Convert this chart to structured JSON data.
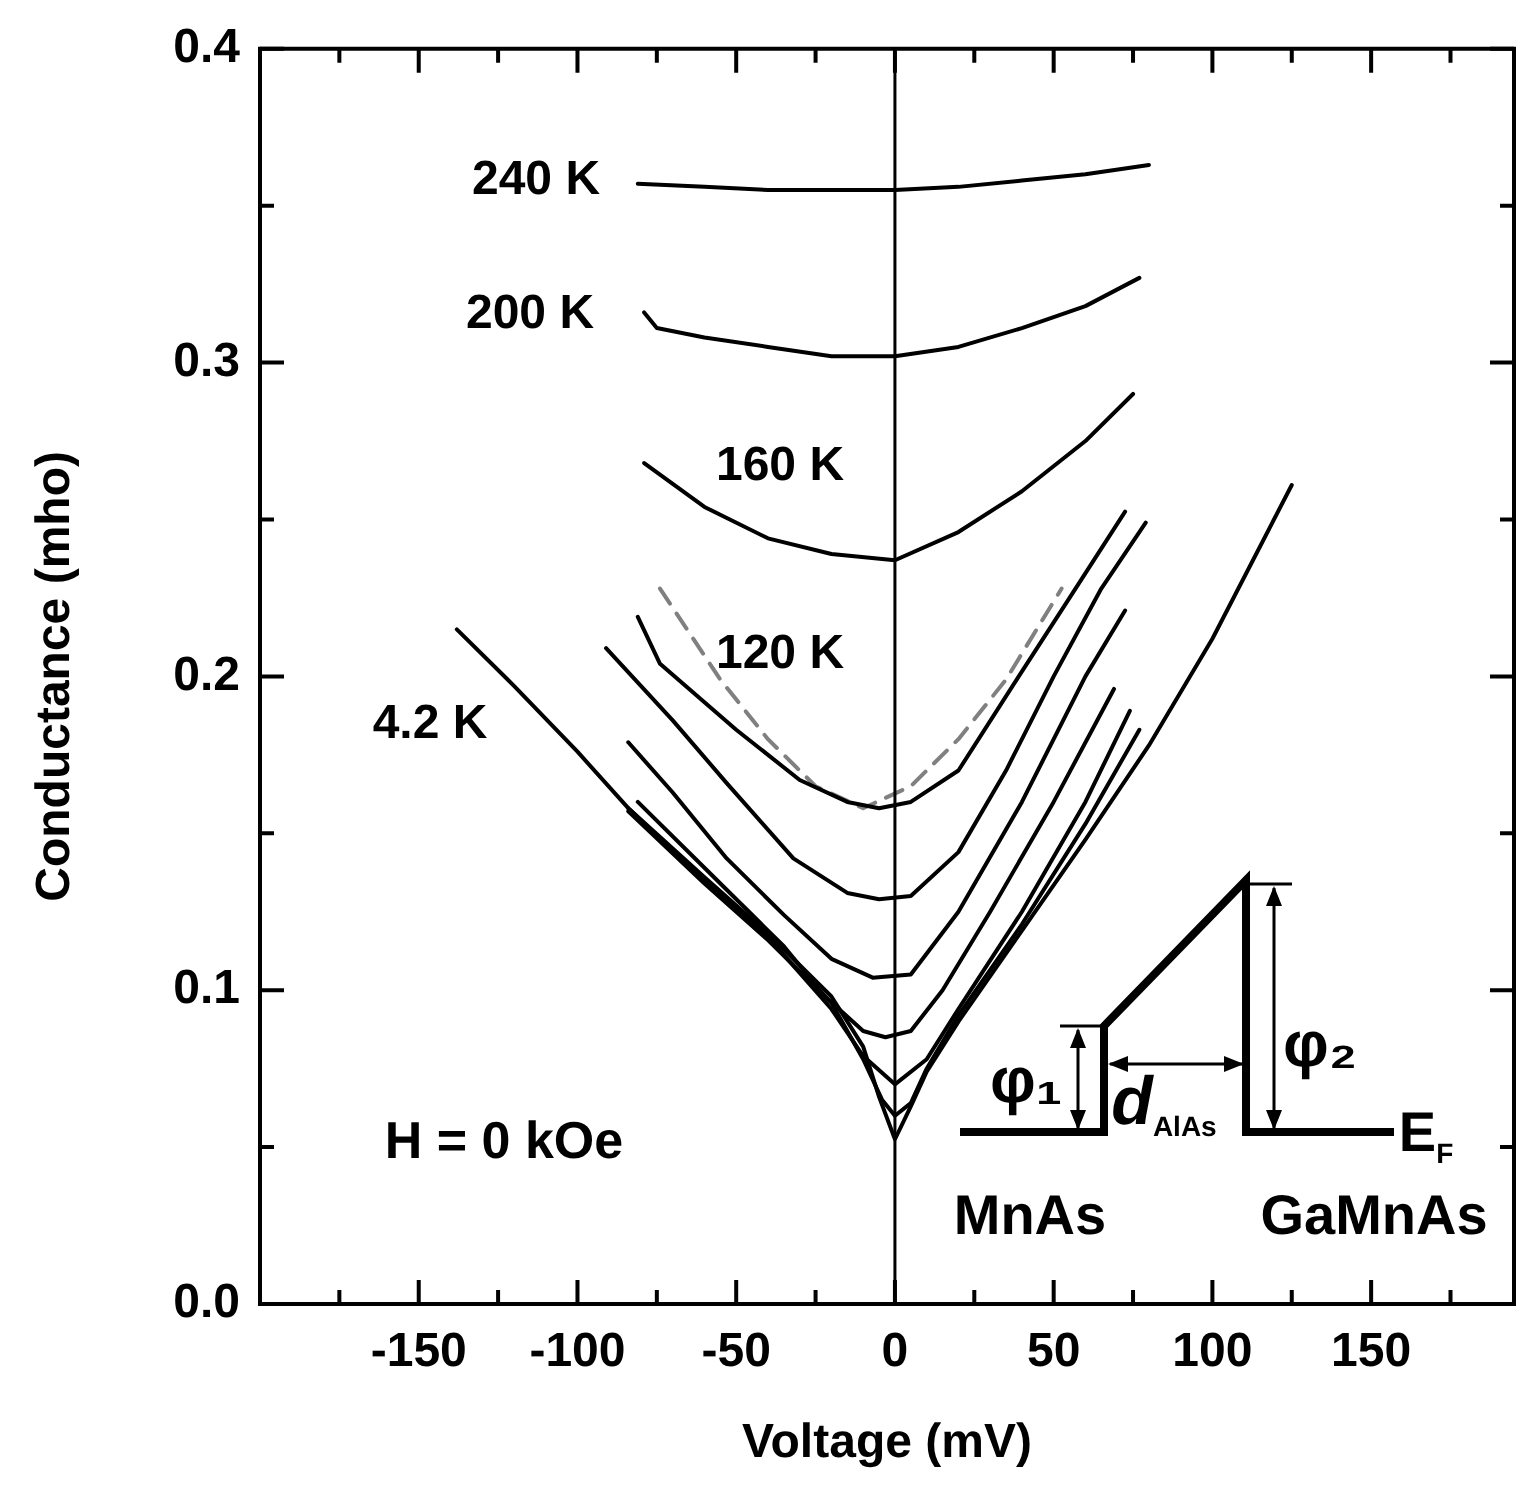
{
  "chart_data": {
    "type": "line",
    "xlabel": "Voltage (mV)",
    "ylabel": "Conductance (mho)",
    "xlim": [
      -200,
      195
    ],
    "ylim": [
      0,
      0.4
    ],
    "xticks": [
      {
        "value": -175,
        "label": null
      },
      -150,
      {
        "value": -125,
        "label": null
      },
      -100,
      {
        "value": -75,
        "label": null
      },
      -50,
      {
        "value": -25,
        "label": null
      },
      0,
      {
        "value": 25,
        "label": null
      },
      50,
      {
        "value": 75,
        "label": null
      },
      100,
      {
        "value": 125,
        "label": null
      },
      150,
      {
        "value": 175,
        "label": null
      }
    ],
    "yticks": [
      {
        "value": 0,
        "label": "0.0"
      },
      {
        "value": 0.05,
        "label": null
      },
      0.1,
      {
        "value": 0.15,
        "label": null
      },
      0.2,
      {
        "value": 0.25,
        "label": null
      },
      0.3,
      {
        "value": 0.35,
        "label": null
      },
      0.4
    ],
    "grid": false,
    "legend": false,
    "marker": "none",
    "ref_lines": [
      {
        "axis": "x",
        "value": 0,
        "color": "#000000"
      }
    ],
    "series": [
      {
        "color": "#000000",
        "x": [
          -81,
          -60,
          -40,
          -20,
          0,
          20,
          40,
          60,
          80
        ],
        "values": [
          0.357,
          0.356,
          0.355,
          0.355,
          0.355,
          0.356,
          0.358,
          0.36,
          0.363
        ]
      },
      {
        "color": "#000000",
        "x": [
          -79,
          -75,
          -60,
          -40,
          -20,
          0,
          20,
          40,
          60,
          77
        ],
        "values": [
          0.316,
          0.311,
          0.308,
          0.305,
          0.302,
          0.302,
          0.305,
          0.311,
          0.318,
          0.327
        ]
      },
      {
        "color": "#000000",
        "x": [
          -79,
          -60,
          -40,
          -20,
          0,
          20,
          40,
          60,
          75
        ],
        "values": [
          0.268,
          0.254,
          0.244,
          0.239,
          0.237,
          0.246,
          0.259,
          0.275,
          0.29
        ]
      },
      {
        "color": "#000000",
        "x": [
          -81,
          -74,
          -50,
          -30,
          -15,
          -5,
          5,
          20,
          39,
          55,
          72.5
        ],
        "values": [
          0.219,
          0.204,
          0.183,
          0.167,
          0.16,
          0.158,
          0.16,
          0.17,
          0.2,
          0.225,
          0.2525
        ]
      },
      {
        "color": "#000000",
        "x": [
          -91,
          -70,
          -53,
          -32,
          -15,
          -5,
          5,
          20,
          35,
          50,
          65,
          79
        ],
        "values": [
          0.209,
          0.186,
          0.166,
          0.142,
          0.131,
          0.129,
          0.13,
          0.144,
          0.17,
          0.2,
          0.228,
          0.249
        ]
      },
      {
        "color": "#000000",
        "x": [
          -84,
          -70,
          -53,
          -35,
          -20,
          -7,
          5,
          20,
          40,
          60,
          72.5
        ],
        "values": [
          0.179,
          0.163,
          0.142,
          0.124,
          0.11,
          0.104,
          0.105,
          0.125,
          0.16,
          0.2,
          0.221
        ]
      },
      {
        "color": "#000000",
        "x": [
          -81,
          -53,
          -35,
          -22,
          -10,
          -3,
          5,
          15,
          30,
          50,
          69
        ],
        "values": [
          0.16,
          0.132,
          0.114,
          0.098,
          0.087,
          0.085,
          0.087,
          0.1,
          0.125,
          0.16,
          0.196
        ]
      },
      {
        "color": "#000000",
        "x": [
          -84,
          -60,
          -40,
          -20,
          -10,
          0,
          10,
          20,
          40,
          60,
          74
        ],
        "values": [
          0.158,
          0.135,
          0.117,
          0.094,
          0.079,
          0.07,
          0.078,
          0.094,
          0.125,
          0.16,
          0.189
        ]
      },
      {
        "color": "#000000",
        "x": [
          -84,
          -60,
          -40,
          -20,
          -10,
          -4,
          0,
          5,
          10,
          20,
          40,
          60,
          77
        ],
        "values": [
          0.157,
          0.134,
          0.116,
          0.096,
          0.078,
          0.065,
          0.06,
          0.064,
          0.075,
          0.092,
          0.121,
          0.153,
          0.183
        ]
      },
      {
        "color": "#000000",
        "x": [
          -138,
          -120,
          -100,
          -84,
          -60,
          -40,
          -20,
          -10,
          -5,
          0,
          5,
          10,
          20,
          40,
          60,
          80,
          100,
          125
        ],
        "values": [
          0.215,
          0.197,
          0.176,
          0.158,
          0.136,
          0.118,
          0.098,
          0.082,
          0.066,
          0.0525,
          0.063,
          0.074,
          0.09,
          0.119,
          0.148,
          0.178,
          0.212,
          0.261
        ]
      },
      {
        "color": "#808080",
        "line_style": "dashed",
        "x": [
          -74,
          -55,
          -40,
          -25,
          -10,
          5,
          20,
          35,
          52.5
        ],
        "values": [
          0.228,
          0.199,
          0.18,
          0.165,
          0.158,
          0.165,
          0.18,
          0.199,
          0.228
        ]
      }
    ],
    "annotations": [
      "240 K",
      "200 K",
      "160 K",
      "120 K",
      "4.2 K",
      "H = 0 kOe",
      "φ₁",
      "d$_{AlAs}$",
      "φ₂",
      "E$_{F}$",
      "MnAs",
      "GaMnAs"
    ]
  }
}
